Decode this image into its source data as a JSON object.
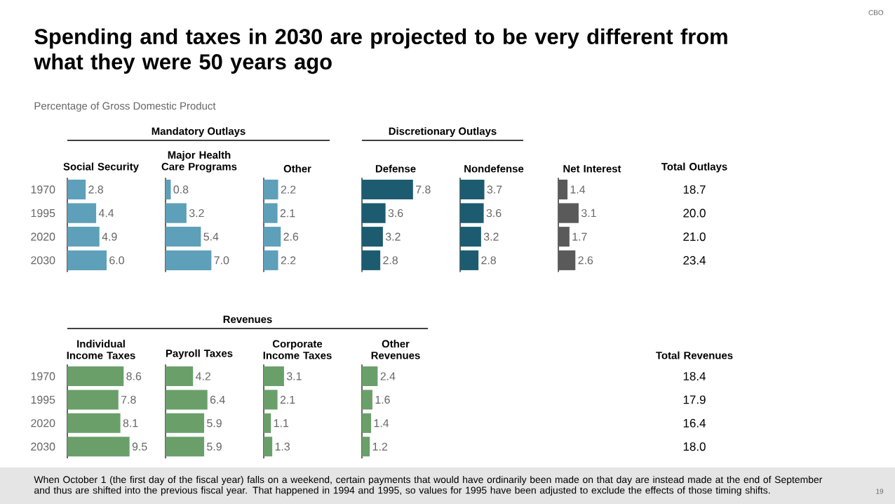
{
  "chart_data": [
    {
      "type": "other",
      "title": "Spending and taxes in 2030 are projected to be very different from what they were 50 years ago",
      "subtitle": "Percentage of Gross Domestic Product",
      "annotations": [
        "CBO",
        "Mandatory Outlays",
        "Discretionary Outlays",
        "Revenues",
        "When October 1 (the first day of the fiscal year) falls on a weekend, certain payments that would have ordinarily been made on that day are instead made at the end of September and thus are shifted into the previous fiscal year. That happened in 1994 and 1995, so values for 1995 have been adjusted to exclude the effects of those timing shifts.",
        "19"
      ]
    },
    {
      "type": "bar",
      "orientation": "horizontal",
      "title": "Social Security",
      "categories": [
        "1970",
        "1995",
        "2020",
        "2030"
      ],
      "values": [
        2.8,
        4.4,
        4.9,
        6.0
      ],
      "value_labels": [
        "2.8",
        "4.4",
        "4.9",
        "6.0"
      ],
      "color": "#5e9fb9",
      "tick_labels": "y"
    },
    {
      "type": "bar",
      "orientation": "horizontal",
      "title": "Major Health Care Programs",
      "categories": [
        "1970",
        "1995",
        "2020",
        "2030"
      ],
      "values": [
        0.8,
        3.2,
        5.4,
        7.0
      ],
      "value_labels": [
        "0.8",
        "3.2",
        "5.4",
        "7.0"
      ],
      "color": "#5e9fb9",
      "tick_labels": false
    },
    {
      "type": "bar",
      "orientation": "horizontal",
      "title": "Other",
      "categories": [
        "1970",
        "1995",
        "2020",
        "2030"
      ],
      "values": [
        2.2,
        2.1,
        2.6,
        2.2
      ],
      "color": "#5e9fb9",
      "data_labels": true,
      "tick_labels": false
    },
    {
      "type": "bar",
      "orientation": "horizontal",
      "title": "Defense",
      "categories": [
        "1970",
        "1995",
        "2020",
        "2030"
      ],
      "values": [
        7.8,
        3.6,
        3.2,
        2.8
      ],
      "color": "#1d5b70",
      "data_labels": true,
      "tick_labels": false
    },
    {
      "type": "bar",
      "orientation": "horizontal",
      "title": "Nondefense",
      "categories": [
        "1970",
        "1995",
        "2020",
        "2030"
      ],
      "values": [
        3.7,
        3.6,
        3.2,
        2.8
      ],
      "color": "#1d5b70",
      "data_labels": true,
      "tick_labels": false
    },
    {
      "type": "bar",
      "orientation": "horizontal",
      "title": "Net Interest",
      "categories": [
        "1970",
        "1995",
        "2020",
        "2030"
      ],
      "values": [
        1.4,
        3.1,
        1.7,
        2.6
      ],
      "color": "#5a5a5a",
      "data_labels": true,
      "tick_labels": false
    },
    {
      "type": "other",
      "title": "Total Outlays",
      "annotations": [
        "18.7",
        "20.0",
        "21.0",
        "23.4"
      ]
    },
    {
      "type": "bar",
      "orientation": "horizontal",
      "title": "Individual Income Taxes",
      "categories": [
        "1970",
        "1995",
        "2020",
        "2030"
      ],
      "values": [
        8.6,
        7.8,
        8.1,
        9.5
      ],
      "color": "#6a9f6a",
      "data_labels": true,
      "tick_labels": "y"
    },
    {
      "type": "bar",
      "orientation": "horizontal",
      "title": "Payroll Taxes",
      "categories": [
        "1970",
        "1995",
        "2020",
        "2030"
      ],
      "values": [
        4.2,
        6.4,
        5.9,
        5.9
      ],
      "color": "#6a9f6a",
      "data_labels": true,
      "tick_labels": false
    },
    {
      "type": "bar",
      "orientation": "horizontal",
      "title": "Corporate Income Taxes",
      "categories": [
        "1970",
        "1995",
        "2020",
        "2030"
      ],
      "values": [
        3.1,
        2.1,
        1.1,
        1.3
      ],
      "color": "#6a9f6a",
      "data_labels": true,
      "tick_labels": false
    },
    {
      "type": "bar",
      "orientation": "horizontal",
      "title": "Other Revenues",
      "categories": [
        "1970",
        "1995",
        "2020",
        "2030"
      ],
      "values": [
        2.4,
        1.6,
        1.4,
        1.2
      ],
      "color": "#6a9f6a",
      "data_labels": true,
      "tick_labels": false
    },
    {
      "type": "other",
      "title": "Total Revenues",
      "annotations": [
        "18.4",
        "17.9",
        "16.4",
        "18.0"
      ]
    }
  ]
}
